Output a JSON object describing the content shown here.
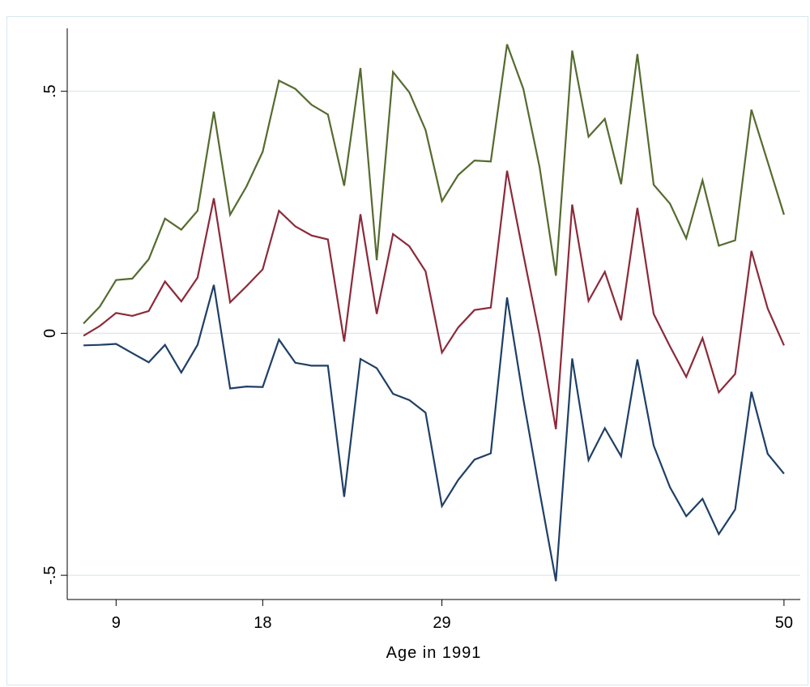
{
  "chart_data": {
    "type": "line",
    "title": "",
    "xlabel": "Age in 1991",
    "ylabel": "",
    "xlim": [
      6,
      51
    ],
    "ylim": [
      -0.55,
      0.63
    ],
    "x_ticks": [
      9,
      18,
      29,
      50
    ],
    "y_ticks": [
      {
        "value": 0.5,
        "label": ".5"
      },
      {
        "value": 0,
        "label": "0"
      },
      {
        "value": -0.5,
        "label": "-.5"
      }
    ],
    "grid": "horizontal",
    "legend": "none",
    "x": [
      7,
      8,
      9,
      10,
      11,
      12,
      13,
      14,
      15,
      16,
      17,
      18,
      19,
      20,
      21,
      22,
      23,
      24,
      25,
      26,
      27,
      28,
      29,
      30,
      31,
      32,
      33,
      34,
      35,
      36,
      37,
      38,
      39,
      40,
      41,
      42,
      43,
      44,
      45,
      46,
      47,
      48,
      49,
      50
    ],
    "series": [
      {
        "color": "#556b2f",
        "values": [
          0.02,
          0.055,
          0.11,
          0.113,
          0.153,
          0.237,
          0.214,
          0.253,
          0.458,
          0.245,
          0.303,
          0.375,
          0.522,
          0.505,
          0.472,
          0.452,
          0.305,
          0.548,
          0.151,
          0.54,
          0.498,
          0.42,
          0.273,
          0.327,
          0.357,
          0.355,
          0.597,
          0.505,
          0.343,
          0.119,
          0.584,
          0.406,
          0.443,
          0.308,
          0.577,
          0.307,
          0.268,
          0.196,
          0.316,
          0.181,
          0.192,
          0.462,
          0.354,
          0.245
        ]
      },
      {
        "color": "#8b2a3a",
        "values": [
          -0.005,
          0.015,
          0.042,
          0.036,
          0.046,
          0.107,
          0.066,
          0.115,
          0.279,
          0.064,
          0.097,
          0.132,
          0.253,
          0.221,
          0.202,
          0.194,
          -0.017,
          0.246,
          0.04,
          0.205,
          0.18,
          0.128,
          -0.04,
          0.012,
          0.048,
          0.053,
          0.336,
          0.163,
          -0.005,
          -0.198,
          0.266,
          0.067,
          0.127,
          0.027,
          0.259,
          0.04,
          -0.027,
          -0.09,
          -0.01,
          -0.122,
          -0.084,
          0.17,
          0.051,
          -0.025
        ]
      },
      {
        "color": "#1f3f66",
        "values": [
          -0.025,
          -0.024,
          -0.022,
          -0.041,
          -0.06,
          -0.024,
          -0.081,
          -0.024,
          0.1,
          -0.114,
          -0.11,
          -0.111,
          -0.013,
          -0.061,
          -0.067,
          -0.067,
          -0.338,
          -0.053,
          -0.072,
          -0.125,
          -0.138,
          -0.164,
          -0.357,
          -0.303,
          -0.261,
          -0.248,
          0.074,
          -0.136,
          -0.327,
          -0.512,
          -0.052,
          -0.262,
          -0.196,
          -0.254,
          -0.054,
          -0.232,
          -0.318,
          -0.378,
          -0.342,
          -0.415,
          -0.364,
          -0.121,
          -0.249,
          -0.29
        ]
      }
    ]
  }
}
